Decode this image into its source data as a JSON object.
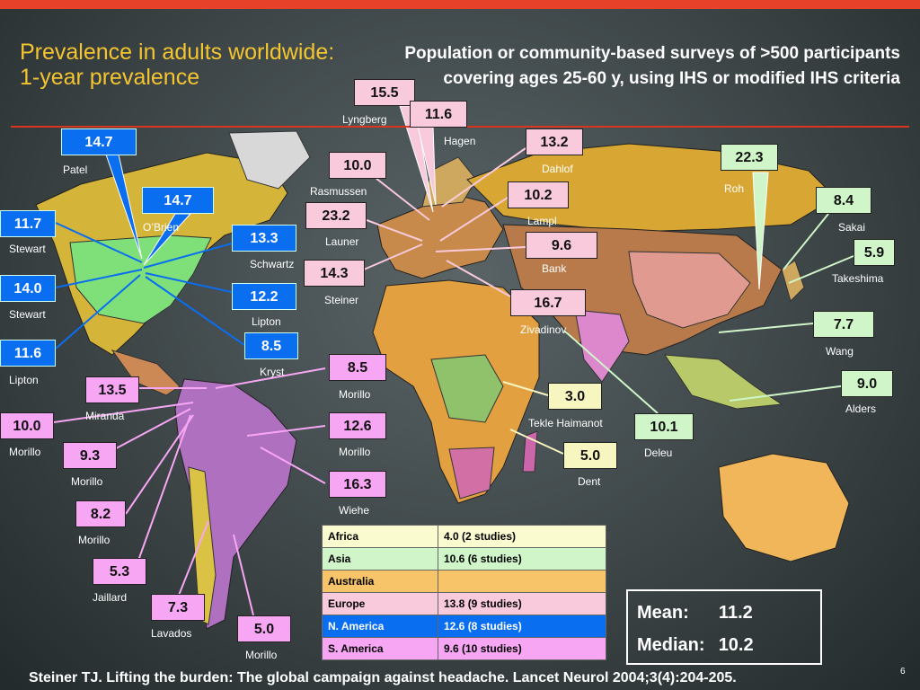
{
  "header": {
    "title": "Prevalence in adults worldwide:\n1-year prevalence",
    "subtitle": "Population or community-based surveys of >500 participants covering ages 25-60 y, using IHS or modified IHS criteria"
  },
  "colors": {
    "north_america": "#0a6ef0",
    "south_america": "#f7a6f4",
    "europe": "#f8cadc",
    "asia": "#cff5c8",
    "africa": "#f8f6c0",
    "australia": "#f7c46a",
    "accent_red": "#e8412a",
    "title_yellow": "#f4c530"
  },
  "studies": [
    {
      "value": "14.7",
      "author": "Patel",
      "region": "na"
    },
    {
      "value": "14.7",
      "author": "O’Brien",
      "region": "na"
    },
    {
      "value": "11.7",
      "author": "Stewart",
      "region": "na"
    },
    {
      "value": "13.3",
      "author": "Schwartz",
      "region": "na"
    },
    {
      "value": "14.0",
      "author": "Stewart",
      "region": "na"
    },
    {
      "value": "12.2",
      "author": "Lipton",
      "region": "na"
    },
    {
      "value": "8.5",
      "author": "Kryst",
      "region": "na"
    },
    {
      "value": "11.6",
      "author": "Lipton",
      "region": "na"
    },
    {
      "value": "13.5",
      "author": "Miranda",
      "region": "sa"
    },
    {
      "value": "10.0",
      "author": "Morillo",
      "region": "sa"
    },
    {
      "value": "9.3",
      "author": "Morillo",
      "region": "sa"
    },
    {
      "value": "8.2",
      "author": "Morillo",
      "region": "sa"
    },
    {
      "value": "5.3",
      "author": "Jaillard",
      "region": "sa"
    },
    {
      "value": "7.3",
      "author": "Lavados",
      "region": "sa"
    },
    {
      "value": "5.0",
      "author": "Morillo",
      "region": "sa"
    },
    {
      "value": "8.5",
      "author": "Morillo",
      "region": "sa"
    },
    {
      "value": "12.6",
      "author": "Morillo",
      "region": "sa"
    },
    {
      "value": "16.3",
      "author": "Wiehe",
      "region": "sa"
    },
    {
      "value": "15.5",
      "author": "Lyngberg",
      "region": "eu"
    },
    {
      "value": "11.6",
      "author": "Hagen",
      "region": "eu"
    },
    {
      "value": "10.0",
      "author": "Rasmussen",
      "region": "eu"
    },
    {
      "value": "13.2",
      "author": "Dahlof",
      "region": "eu"
    },
    {
      "value": "23.2",
      "author": "Launer",
      "region": "eu"
    },
    {
      "value": "10.2",
      "author": "Lampl",
      "region": "eu"
    },
    {
      "value": "14.3",
      "author": "Steiner",
      "region": "eu"
    },
    {
      "value": "9.6",
      "author": "Bank",
      "region": "eu"
    },
    {
      "value": "16.7",
      "author": "Zivadinov",
      "region": "eu"
    },
    {
      "value": "22.3",
      "author": "Roh",
      "region": "as"
    },
    {
      "value": "8.4",
      "author": "Sakai",
      "region": "as"
    },
    {
      "value": "5.9",
      "author": "Takeshima",
      "region": "as"
    },
    {
      "value": "7.7",
      "author": "Wang",
      "region": "as"
    },
    {
      "value": "9.0",
      "author": "Alders",
      "region": "as"
    },
    {
      "value": "10.1",
      "author": "Deleu",
      "region": "as"
    },
    {
      "value": "3.0",
      "author": "Tekle Haimanot",
      "region": "af"
    },
    {
      "value": "5.0",
      "author": "Dent",
      "region": "af"
    }
  ],
  "summary_table": [
    {
      "region": "Africa",
      "value": "4.0 (2 studies)"
    },
    {
      "region": "Asia",
      "value": "10.6 (6 studies)"
    },
    {
      "region": "Australia",
      "value": ""
    },
    {
      "region": "Europe",
      "value": "13.8 (9 studies)"
    },
    {
      "region": "N. America",
      "value": "12.6 (8 studies)"
    },
    {
      "region": "S. America",
      "value": "9.6 (10 studies)"
    }
  ],
  "stats": {
    "mean_label": "Mean:",
    "mean_value": "11.2",
    "median_label": "Median:",
    "median_value": "10.2"
  },
  "footer": {
    "citation": "Steiner TJ. Lifting the burden: The global campaign against headache. Lancet Neurol 2004;3(4):204-205.",
    "slide_number": "6"
  }
}
